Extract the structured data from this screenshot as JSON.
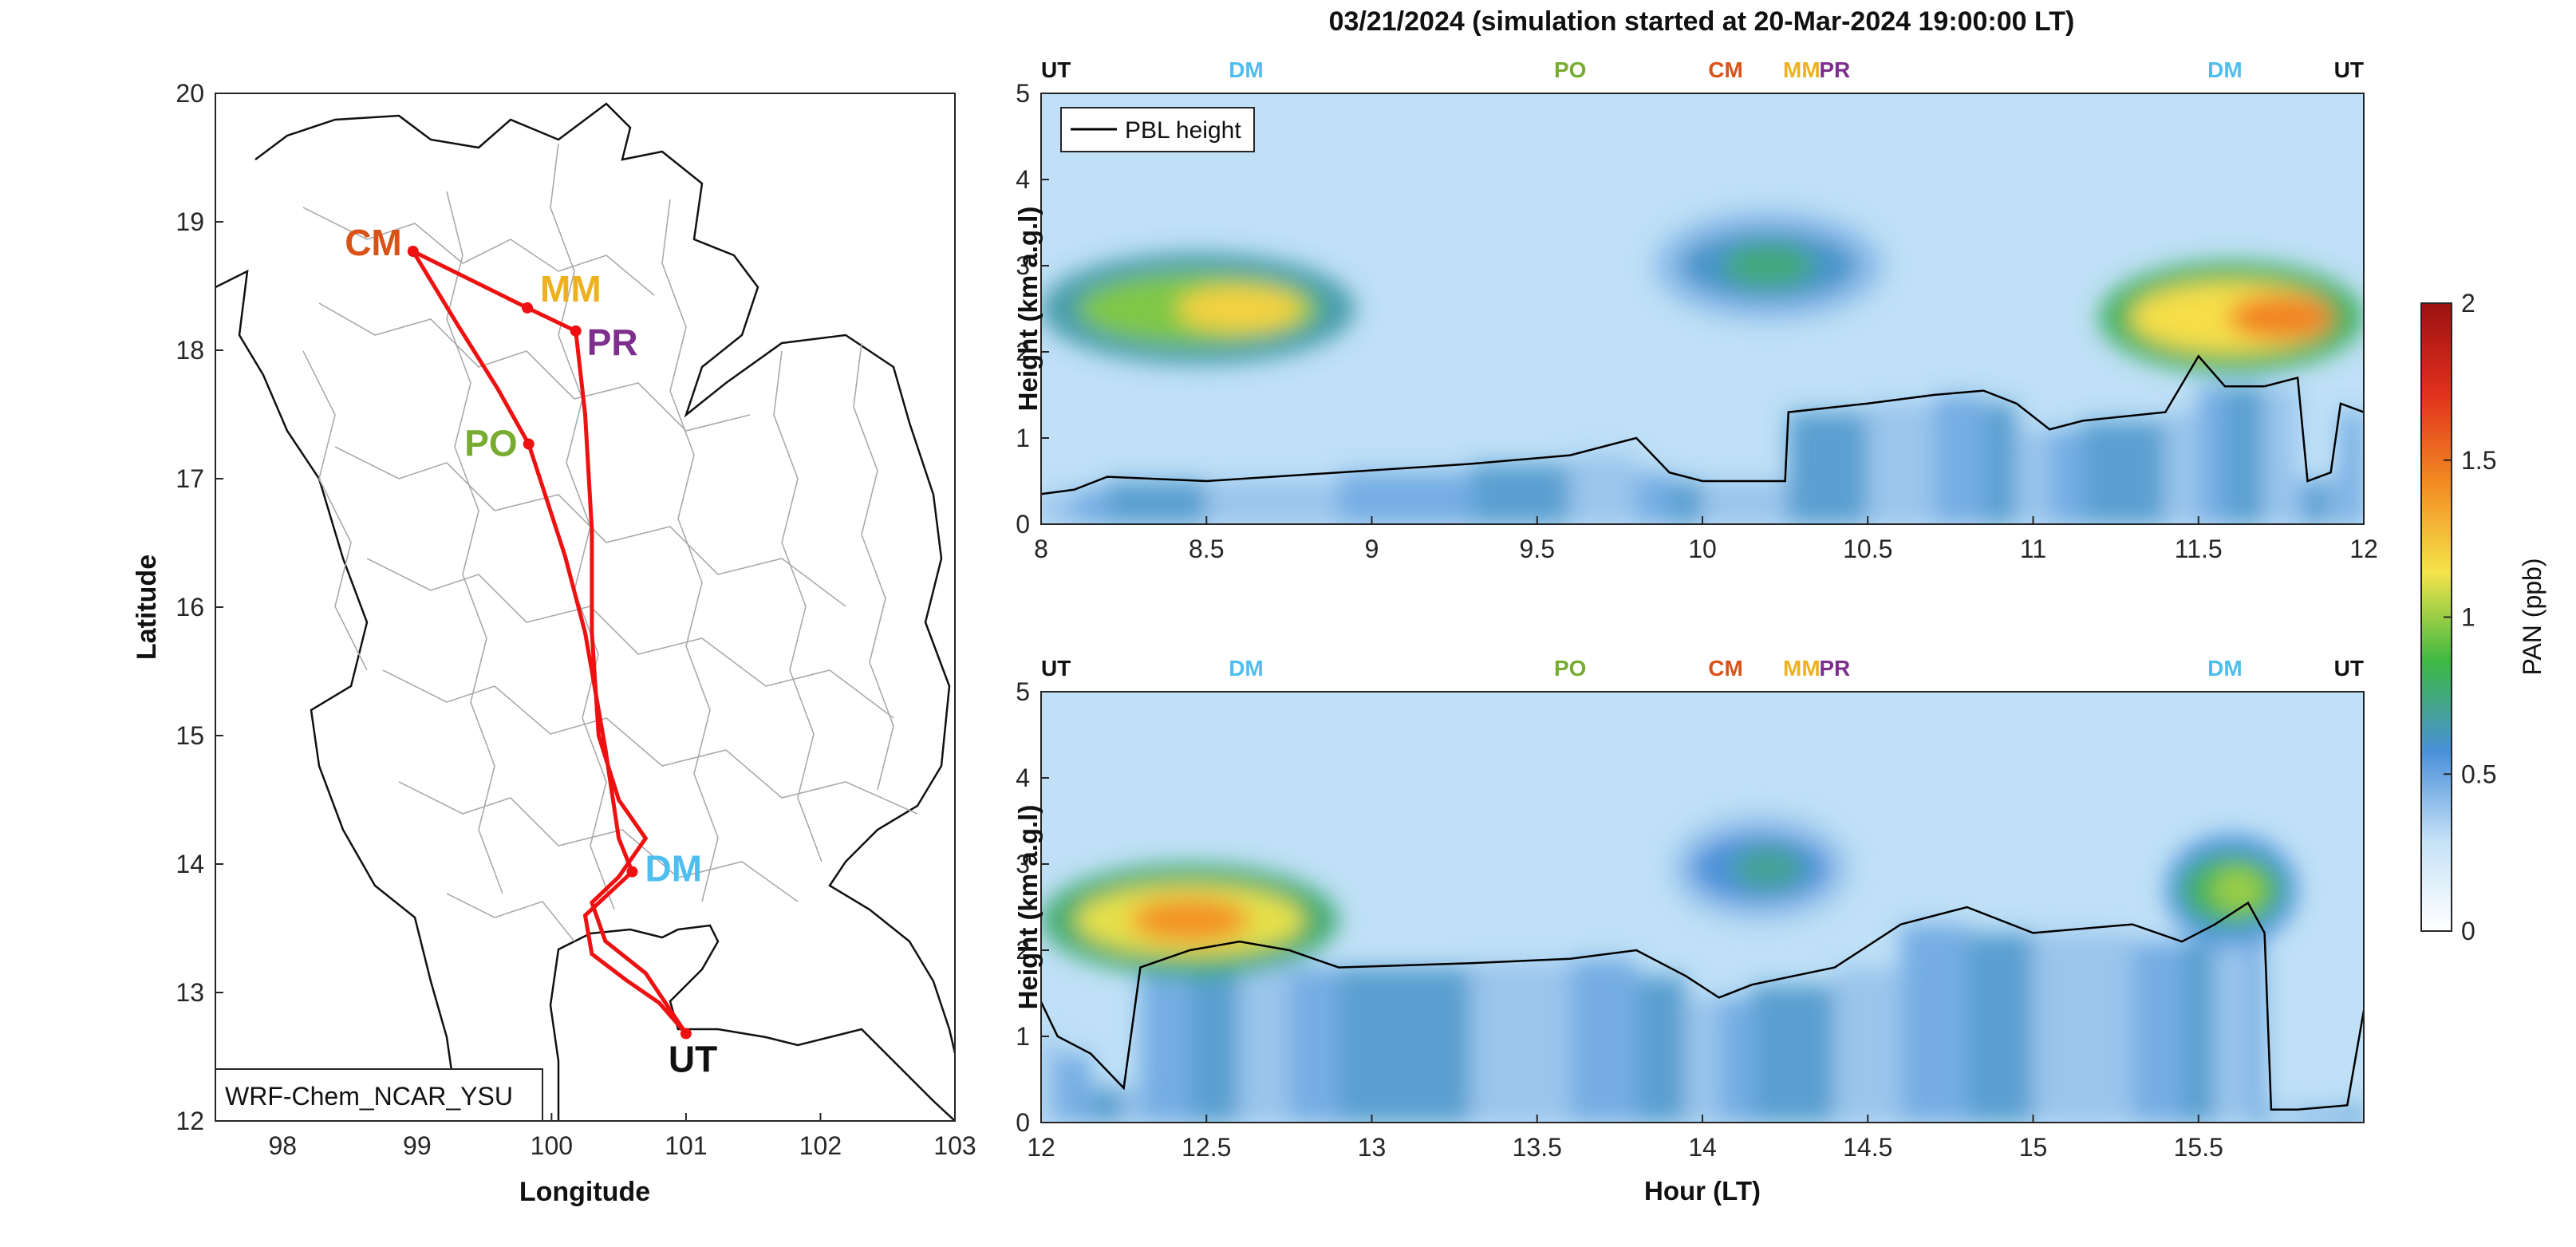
{
  "title": "03/21/2024 (simulation started at 20-Mar-2024 19:00:00 LT)",
  "colors": {
    "UT": "#111111",
    "DM": "#4DBEEE",
    "PO": "#77AC30",
    "CM": "#D95319",
    "MM": "#EDB120",
    "PR": "#7E2F8E",
    "track": "#EE1111",
    "pbl": "#000000"
  },
  "chart_data": [
    {
      "type": "map",
      "xlabel": "Longitude",
      "ylabel": "Latitude",
      "xlim": [
        97.5,
        103
      ],
      "ylim": [
        12,
        20
      ],
      "xticks": [
        "98",
        "99",
        "100",
        "101",
        "102",
        "103"
      ],
      "yticks": [
        "12",
        "13",
        "14",
        "15",
        "16",
        "17",
        "18",
        "19",
        "20"
      ],
      "model_label": "WRF-Chem_NCAR_YSU",
      "stations": [
        {
          "name": "CM",
          "lon": 98.97,
          "lat": 18.77
        },
        {
          "name": "MM",
          "lon": 99.82,
          "lat": 18.33
        },
        {
          "name": "PR",
          "lon": 100.18,
          "lat": 18.15
        },
        {
          "name": "PO",
          "lon": 99.83,
          "lat": 17.27
        },
        {
          "name": "DM",
          "lon": 100.6,
          "lat": 13.94
        },
        {
          "name": "UT",
          "lon": 101.0,
          "lat": 12.68
        }
      ],
      "track": [
        [
          101.0,
          12.68
        ],
        [
          100.8,
          12.92
        ],
        [
          100.55,
          13.1
        ],
        [
          100.3,
          13.3
        ],
        [
          100.25,
          13.6
        ],
        [
          100.6,
          13.94
        ],
        [
          100.5,
          14.2
        ],
        [
          100.4,
          14.9
        ],
        [
          100.25,
          15.8
        ],
        [
          100.1,
          16.4
        ],
        [
          99.83,
          17.27
        ],
        [
          99.6,
          17.7
        ],
        [
          99.3,
          18.2
        ],
        [
          98.97,
          18.77
        ],
        [
          99.82,
          18.33
        ],
        [
          100.18,
          18.15
        ],
        [
          100.25,
          17.5
        ],
        [
          100.3,
          16.6
        ],
        [
          100.3,
          15.8
        ],
        [
          100.35,
          15.0
        ],
        [
          100.5,
          14.5
        ],
        [
          100.7,
          14.2
        ],
        [
          100.5,
          13.9
        ],
        [
          100.3,
          13.7
        ],
        [
          100.4,
          13.4
        ],
        [
          100.7,
          13.15
        ],
        [
          101.0,
          12.68
        ]
      ]
    },
    {
      "type": "heatmap",
      "xlabel": "",
      "ylabel": "Height (km a.g.l)",
      "xlim": [
        8,
        12
      ],
      "ylim": [
        0,
        5
      ],
      "xticks": [
        "8",
        "8.5",
        "9",
        "9.5",
        "10",
        "10.5",
        "11",
        "11.5",
        "12"
      ],
      "yticks": [
        "0",
        "1",
        "2",
        "3",
        "4",
        "5"
      ],
      "legend": "PBL height",
      "top_labels": [
        {
          "t": 8.0,
          "label": "UT"
        },
        {
          "t": 8.62,
          "label": "DM"
        },
        {
          "t": 9.6,
          "label": "PO"
        },
        {
          "t": 10.07,
          "label": "CM"
        },
        {
          "t": 10.3,
          "label": "MM"
        },
        {
          "t": 10.4,
          "label": "PR"
        },
        {
          "t": 11.58,
          "label": "DM"
        },
        {
          "t": 12.0,
          "label": "UT"
        }
      ],
      "pbl_height": [
        [
          8.0,
          0.35
        ],
        [
          8.1,
          0.4
        ],
        [
          8.2,
          0.55
        ],
        [
          8.5,
          0.5
        ],
        [
          8.9,
          0.6
        ],
        [
          9.3,
          0.7
        ],
        [
          9.6,
          0.8
        ],
        [
          9.8,
          1.0
        ],
        [
          9.9,
          0.6
        ],
        [
          10.0,
          0.5
        ],
        [
          10.25,
          0.5
        ],
        [
          10.26,
          1.3
        ],
        [
          10.5,
          1.4
        ],
        [
          10.7,
          1.5
        ],
        [
          10.85,
          1.55
        ],
        [
          10.95,
          1.4
        ],
        [
          11.05,
          1.1
        ],
        [
          11.15,
          1.2
        ],
        [
          11.4,
          1.3
        ],
        [
          11.5,
          1.95
        ],
        [
          11.58,
          1.6
        ],
        [
          11.7,
          1.6
        ],
        [
          11.8,
          1.7
        ],
        [
          11.83,
          0.5
        ],
        [
          11.9,
          0.6
        ],
        [
          11.93,
          1.4
        ],
        [
          12.0,
          1.3
        ]
      ],
      "pan_layers": [
        {
          "t0": 8.0,
          "t1": 8.95,
          "center_t": 8.6,
          "z": 2.5,
          "ppb": 1.2
        },
        {
          "t0": 9.85,
          "t1": 10.55,
          "center_t": 10.2,
          "z": 3.0,
          "ppb": 0.75
        },
        {
          "t0": 11.2,
          "t1": 12.0,
          "center_t": 11.75,
          "z": 2.4,
          "ppb": 1.45
        }
      ]
    },
    {
      "type": "heatmap",
      "xlabel": "Hour (LT)",
      "ylabel": "Height (km a.g.l)",
      "xlim": [
        12,
        16
      ],
      "ylim": [
        0,
        5
      ],
      "xticks": [
        "12",
        "12.5",
        "13",
        "13.5",
        "14",
        "14.5",
        "15",
        "15.5"
      ],
      "yticks": [
        "0",
        "1",
        "2",
        "3",
        "4",
        "5"
      ],
      "top_labels": [
        {
          "t": 12.0,
          "label": "UT"
        },
        {
          "t": 12.62,
          "label": "DM"
        },
        {
          "t": 13.6,
          "label": "PO"
        },
        {
          "t": 14.07,
          "label": "CM"
        },
        {
          "t": 14.3,
          "label": "MM"
        },
        {
          "t": 14.4,
          "label": "PR"
        },
        {
          "t": 15.58,
          "label": "DM"
        },
        {
          "t": 16.0,
          "label": "UT"
        }
      ],
      "pbl_height": [
        [
          12.0,
          1.4
        ],
        [
          12.05,
          1.0
        ],
        [
          12.15,
          0.8
        ],
        [
          12.25,
          0.4
        ],
        [
          12.3,
          1.8
        ],
        [
          12.45,
          2.0
        ],
        [
          12.6,
          2.1
        ],
        [
          12.75,
          2.0
        ],
        [
          12.9,
          1.8
        ],
        [
          13.3,
          1.85
        ],
        [
          13.6,
          1.9
        ],
        [
          13.8,
          2.0
        ],
        [
          13.95,
          1.7
        ],
        [
          14.05,
          1.45
        ],
        [
          14.15,
          1.6
        ],
        [
          14.4,
          1.8
        ],
        [
          14.6,
          2.3
        ],
        [
          14.8,
          2.5
        ],
        [
          15.0,
          2.2
        ],
        [
          15.3,
          2.3
        ],
        [
          15.45,
          2.1
        ],
        [
          15.55,
          2.3
        ],
        [
          15.65,
          2.55
        ],
        [
          15.7,
          2.2
        ],
        [
          15.72,
          0.15
        ],
        [
          15.8,
          0.15
        ],
        [
          15.95,
          0.2
        ],
        [
          16.0,
          1.3
        ]
      ],
      "pan_layers": [
        {
          "t0": 12.0,
          "t1": 12.9,
          "center_t": 12.45,
          "z": 2.35,
          "ppb": 1.4
        },
        {
          "t0": 13.9,
          "t1": 14.45,
          "center_t": 14.2,
          "z": 2.95,
          "ppb": 0.7
        },
        {
          "t0": 15.4,
          "t1": 15.8,
          "center_t": 15.62,
          "z": 2.7,
          "ppb": 1.0
        }
      ]
    },
    {
      "type": "colorbar",
      "label": "PAN (ppb)",
      "range": [
        0,
        2
      ],
      "ticks": [
        "0",
        "0.5",
        "1",
        "1.5",
        "2"
      ],
      "colormap": [
        "#ffffff",
        "#c6e2f7",
        "#4a90d9",
        "#3db843",
        "#f5e34a",
        "#f38a22",
        "#e0301e",
        "#9c1111"
      ]
    }
  ]
}
